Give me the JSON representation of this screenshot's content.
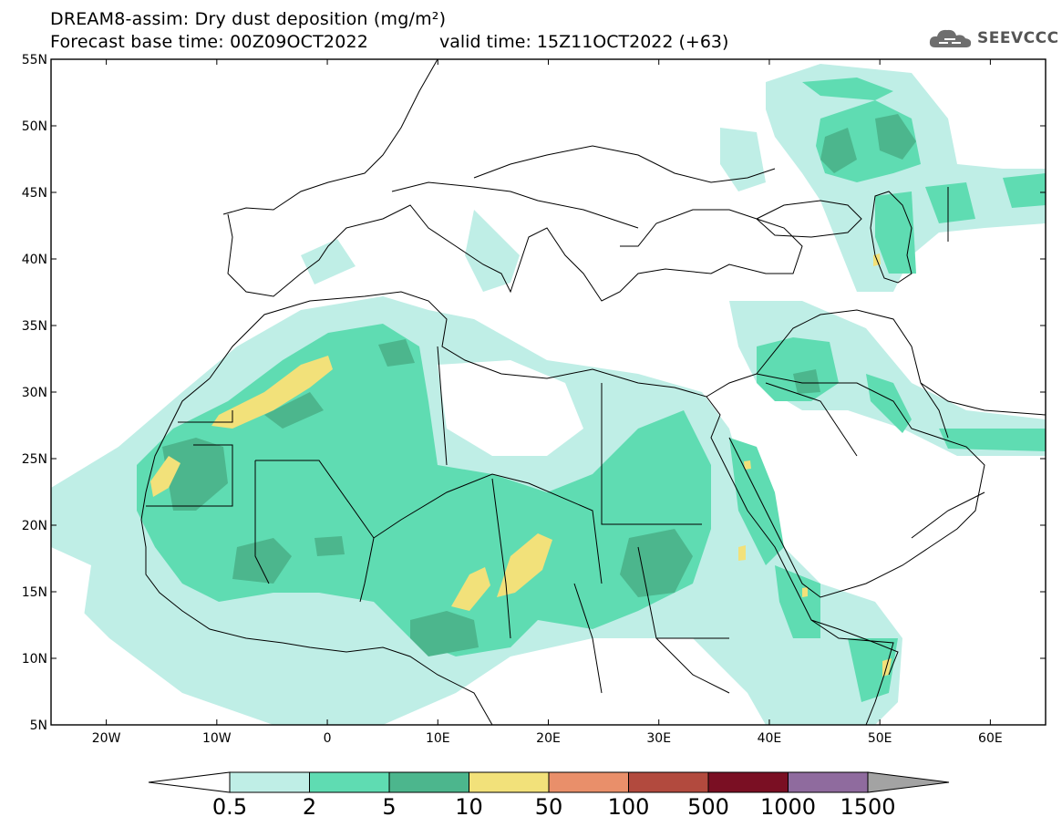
{
  "title": {
    "line1": "DREAM8-assim: Dry dust deposition (mg/m²)",
    "line2": "Forecast base time: 00Z09OCT2022",
    "valid": "valid time: 15Z11OCT2022 (+63)"
  },
  "logo": {
    "text": "SEEVCCC",
    "icon": "cloud-icon"
  },
  "map": {
    "lat_range": [
      5,
      55
    ],
    "lon_range": [
      -25,
      65
    ],
    "lat_ticks": [
      "5N",
      "10N",
      "15N",
      "20N",
      "25N",
      "30N",
      "35N",
      "40N",
      "45N",
      "50N",
      "55N"
    ],
    "lon_ticks": [
      "20W",
      "10W",
      "0",
      "10E",
      "20E",
      "30E",
      "40E",
      "50E",
      "60E"
    ],
    "field_colors": {
      "level1": "#bfeee6",
      "level2": "#5fdcb2",
      "level3": "#4cb68d",
      "level4": "#f2e17a"
    }
  },
  "colorbar": {
    "labels": [
      "0.5",
      "2",
      "5",
      "10",
      "50",
      "100",
      "500",
      "1000",
      "1500"
    ],
    "colors": [
      "#bfeee6",
      "#5fdcb2",
      "#4cb68d",
      "#f2e17a",
      "#e98f6a",
      "#b24a3e",
      "#7a0f23",
      "#8f6b9e"
    ],
    "under_color": "#ffffff",
    "over_color": "#a3a3a3"
  }
}
